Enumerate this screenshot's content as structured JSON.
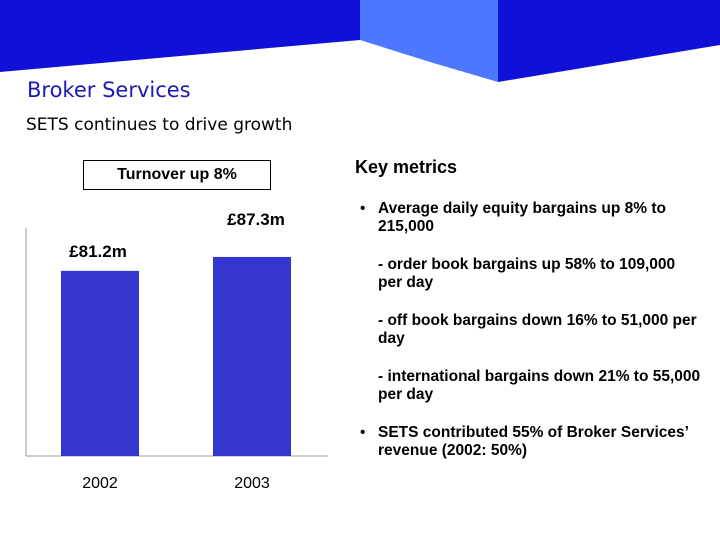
{
  "header": {
    "title": "Broker Services",
    "subtitle": "SETS continues to drive growth"
  },
  "colors": {
    "banner_dark": "#1010d8",
    "banner_light": "#4d77ff",
    "bar": "#3535d0",
    "title": "#1a1ab4"
  },
  "chart_data": {
    "type": "bar",
    "title": "Turnover up 8%",
    "categories": [
      "2002",
      "2003"
    ],
    "values": [
      81.2,
      87.3
    ],
    "value_labels": [
      "£81.2m",
      "£87.3m"
    ],
    "unit": "£m",
    "ylim": [
      0,
      100
    ],
    "grid": false
  },
  "metrics": {
    "heading": "Key metrics",
    "items": [
      {
        "bullet": "•",
        "text": "Average daily equity bargains up 8% to 215,000"
      },
      {
        "bullet": "",
        "text": "-  order book bargains up 58% to 109,000 per day"
      },
      {
        "bullet": "",
        "text": "-  off book bargains down 16% to 51,000 per day"
      },
      {
        "bullet": "",
        "text": "-  international bargains down 21% to 55,000 per day"
      },
      {
        "bullet": "•",
        "text": "SETS contributed 55% of Broker Services’ revenue (2002: 50%)"
      }
    ]
  }
}
